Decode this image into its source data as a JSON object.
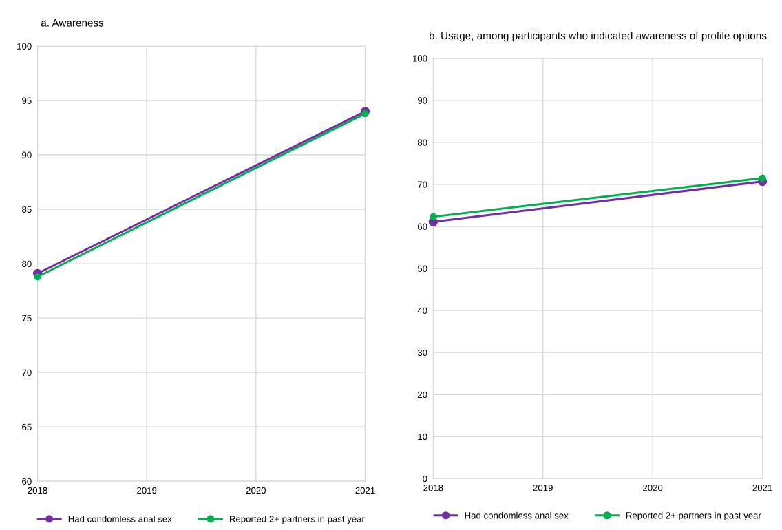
{
  "chart_data": [
    {
      "type": "line",
      "title": "a. Awareness",
      "categories": [
        "2018",
        "2019",
        "2020",
        "2021"
      ],
      "ylim": [
        60,
        100
      ],
      "yticks": [
        60,
        65,
        70,
        75,
        80,
        85,
        90,
        95,
        100
      ],
      "grid": true,
      "marker": "circle",
      "legend": "bottom",
      "series": [
        {
          "name": "Had condomless anal sex",
          "color": "#7030a0",
          "values": [
            79.1,
            null,
            null,
            94.0
          ]
        },
        {
          "name": "Reported 2+ partners in past year",
          "color": "#00b050",
          "values": [
            78.8,
            null,
            null,
            93.8
          ]
        }
      ]
    },
    {
      "type": "line",
      "title": "b. Usage, among participants who indicated awareness of profile options",
      "categories": [
        "2018",
        "2019",
        "2020",
        "2021"
      ],
      "ylim": [
        0,
        100
      ],
      "yticks": [
        0,
        10,
        20,
        30,
        40,
        50,
        60,
        70,
        80,
        90,
        100
      ],
      "grid": true,
      "marker": "circle",
      "legend": "bottom",
      "series": [
        {
          "name": "Had condomless anal sex",
          "color": "#7030a0",
          "values": [
            61.1,
            null,
            null,
            70.7
          ]
        },
        {
          "name": "Reported 2+ partners in past year",
          "color": "#00b050",
          "values": [
            62.3,
            null,
            null,
            71.5
          ]
        }
      ]
    }
  ]
}
